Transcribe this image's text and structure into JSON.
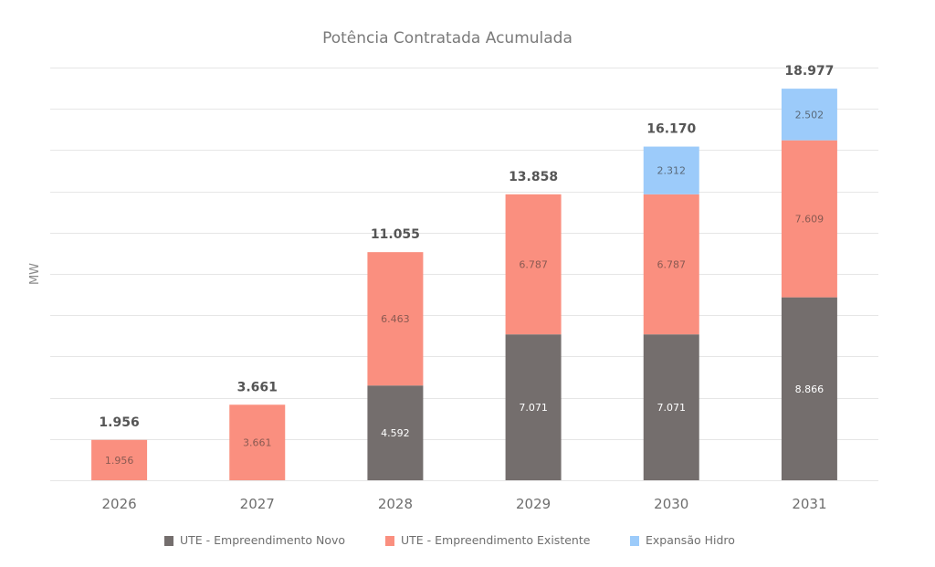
{
  "chart_data": {
    "type": "bar",
    "stacked": true,
    "title": "Potência Contratada Acumulada",
    "xlabel": "",
    "ylabel": "MW",
    "ylim": [
      0,
      20000
    ],
    "y_grid_step": 2000,
    "grid": true,
    "y_tick_labels_visible": false,
    "legend_position": "bottom",
    "categories": [
      "2026",
      "2027",
      "2028",
      "2029",
      "2030",
      "2031"
    ],
    "series": [
      {
        "name": "UTE - Empreendimento Novo",
        "color": "#746e6d",
        "label_color": "#ffffff",
        "values": [
          0,
          0,
          4592,
          7071,
          7071,
          8866
        ],
        "labels": [
          "",
          "",
          "4.592",
          "7.071",
          "7.071",
          "8.866"
        ]
      },
      {
        "name": "UTE - Empreendimento Existente",
        "color": "#fa8f7f",
        "label_color": "#8a5a52",
        "values": [
          1956,
          3661,
          6463,
          6787,
          6787,
          7609
        ],
        "labels": [
          "1.956",
          "3.661",
          "6.463",
          "6.787",
          "6.787",
          "7.609"
        ]
      },
      {
        "name": "Expansão Hidro",
        "color": "#9ccbfa",
        "label_color": "#5a6a7a",
        "values": [
          0,
          0,
          0,
          0,
          2312,
          2502
        ],
        "labels": [
          "",
          "",
          "",
          "",
          "2.312",
          "2.502"
        ]
      }
    ],
    "totals": [
      1956,
      3661,
      11055,
      13858,
      16170,
      18977
    ],
    "total_labels": [
      "1.956",
      "3.661",
      "11.055",
      "13.858",
      "16.170",
      "18.977"
    ]
  }
}
